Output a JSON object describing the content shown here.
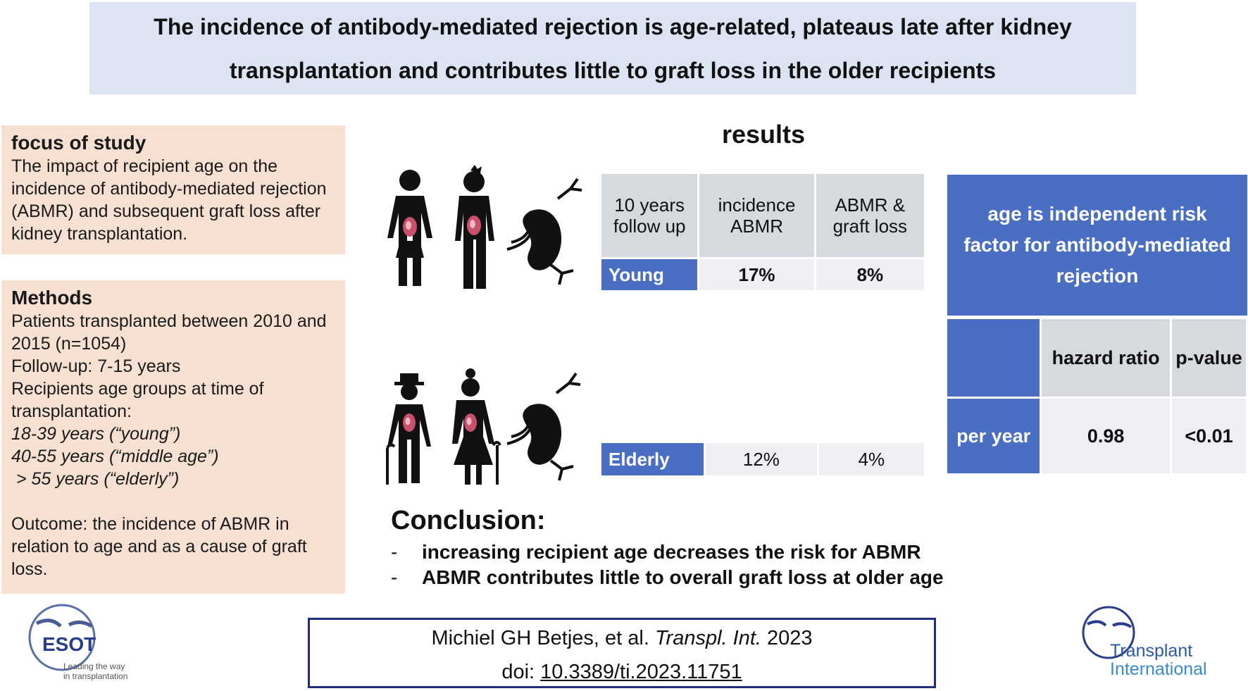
{
  "title": {
    "line1": "The incidence of antibody-mediated rejection  is age-related,  plateaus late after kidney",
    "line2": "transplantation and contributes little to graft loss in the older recipients"
  },
  "focus": {
    "heading": "focus of study",
    "text": "The impact of recipient age on the incidence of antibody-mediated rejection (ABMR) and subsequent graft loss after kidney transplantation."
  },
  "methods": {
    "heading": "Methods",
    "line1": "Patients transplanted between 2010 and 2015 (n=1054)",
    "line2": "Follow-up: 7-15 years",
    "line3": "Recipients age groups at time of transplantation:",
    "young": "18-39 years (“young”)",
    "middle": "40-55 years (“middle age”)",
    "elderly": " > 55 years (“elderly”)",
    "outcome": "Outcome: the incidence of ABMR in relation to age and as a cause of graft loss."
  },
  "results": {
    "title": "results",
    "headers": [
      "10 years follow up",
      "incidence ABMR",
      "ABMR & graft loss"
    ],
    "young": {
      "label": "Young",
      "incidence": "17%",
      "graft_loss": "8%"
    },
    "elderly": {
      "label": "Elderly",
      "incidence": "12%",
      "graft_loss": "4%"
    }
  },
  "risk": {
    "heading": "age is independent risk factor for antibody-mediated rejection",
    "col_hr": "hazard ratio",
    "col_p": "p-value",
    "row_label": "per year",
    "hr": "0.98",
    "p": "<0.01"
  },
  "conclusion": {
    "heading": "Conclusion:",
    "items": [
      "increasing recipient age decreases the risk for ABMR",
      "ABMR contributes little to overall graft loss at older age"
    ]
  },
  "citation": {
    "authors": "Michiel GH Betjes, et al. ",
    "journal": "Transpl. Int.",
    "year": " 2023",
    "doi_prefix": "doi: ",
    "doi": "10.3389/ti.2023.11751"
  },
  "logos": {
    "esot_name": "ESOT",
    "esot_tagline1": "Leading the way",
    "esot_tagline2": "in transplantation",
    "ti_line1": "Transplant",
    "ti_line2": "International"
  },
  "colors": {
    "title_bg": "#dce3f3",
    "side_bg": "#f6e0d1",
    "accent_blue": "#4a6fc2",
    "cell_gray": "#d6d9de",
    "navy": "#1f2e7a"
  }
}
